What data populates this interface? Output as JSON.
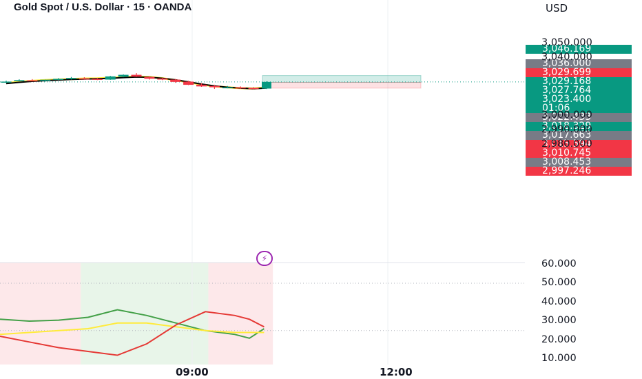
{
  "header": {
    "title": "Gold Spot / U.S. Dollar · 15 · OANDA",
    "currency": "USD"
  },
  "icons": {
    "flash": "lightning-icon"
  },
  "colors": {
    "up": "#089981",
    "down": "#f23645",
    "gray_tag": "#787b86",
    "ma_fast": "#ffeb3b",
    "ma_slow": "#000000",
    "rsi_green": "#43a047",
    "rsi_yellow": "#ffeb3b",
    "rsi_red": "#e53935"
  },
  "chart_data": [
    {
      "type": "candlestick",
      "title": "Gold Spot / U.S. Dollar · 15 · OANDA",
      "ylabel": "USD",
      "ylim": [
        2975,
        3062
      ],
      "x_ticks": [
        "09:00",
        "12:00"
      ],
      "y_ticks": [
        3050,
        3040,
        3000,
        2990,
        2980
      ],
      "y_tick_labels": [
        "3,050.000",
        "3,040.000",
        "3,000.000",
        "2,990.000",
        "2,980.000"
      ],
      "last_price": 3023.4,
      "bar_countdown": "01:06",
      "candles": [
        {
          "o": 3023.3,
          "h": 3024.3,
          "l": 3022.6,
          "c": 3023.6
        },
        {
          "o": 3024.3,
          "h": 3025.2,
          "l": 3024.0,
          "c": 3024.6
        },
        {
          "o": 3024.5,
          "h": 3025.3,
          "l": 3023.7,
          "c": 3024.3
        },
        {
          "o": 3024.2,
          "h": 3025.0,
          "l": 3023.6,
          "c": 3024.9
        },
        {
          "o": 3025.0,
          "h": 3026.0,
          "l": 3024.6,
          "c": 3025.5
        },
        {
          "o": 3025.4,
          "h": 3026.8,
          "l": 3024.9,
          "c": 3026.1
        },
        {
          "o": 3025.8,
          "h": 3026.6,
          "l": 3025.0,
          "c": 3025.6
        },
        {
          "o": 3025.5,
          "h": 3026.0,
          "l": 3024.6,
          "c": 3025.0
        },
        {
          "o": 3025.0,
          "h": 3027.6,
          "l": 3024.8,
          "c": 3027.2
        },
        {
          "o": 3027.0,
          "h": 3028.6,
          "l": 3026.6,
          "c": 3028.3
        },
        {
          "o": 3028.3,
          "h": 3029.5,
          "l": 3026.8,
          "c": 3027.0
        },
        {
          "o": 3026.8,
          "h": 3027.3,
          "l": 3025.0,
          "c": 3025.6
        },
        {
          "o": 3025.8,
          "h": 3026.2,
          "l": 3024.6,
          "c": 3025.0
        },
        {
          "o": 3025.0,
          "h": 3025.4,
          "l": 3022.8,
          "c": 3023.4
        },
        {
          "o": 3023.6,
          "h": 3024.2,
          "l": 3021.2,
          "c": 3021.4
        },
        {
          "o": 3021.5,
          "h": 3022.5,
          "l": 3020.0,
          "c": 3020.3
        },
        {
          "o": 3020.6,
          "h": 3021.4,
          "l": 3018.6,
          "c": 3019.7
        },
        {
          "o": 3019.7,
          "h": 3020.6,
          "l": 3019.0,
          "c": 3019.7
        },
        {
          "o": 3019.6,
          "h": 3020.3,
          "l": 3018.6,
          "c": 3019.1
        },
        {
          "o": 3019.2,
          "h": 3019.8,
          "l": 3018.3,
          "c": 3018.7
        },
        {
          "o": 3018.8,
          "h": 3023.8,
          "l": 3018.5,
          "c": 3023.4
        }
      ],
      "ma_fast": [
        3022.6,
        3023.4,
        3024.1,
        3024.6,
        3025.0,
        3025.4,
        3025.7,
        3025.8,
        3026.2,
        3026.8,
        3027.1,
        3026.8,
        3025.9,
        3024.6,
        3023.2,
        3021.6,
        3020.4,
        3019.6,
        3019.1,
        3018.8,
        3019.6
      ],
      "ma_slow": [
        3022.3,
        3023.1,
        3023.8,
        3024.3,
        3024.7,
        3025.1,
        3025.4,
        3025.6,
        3025.9,
        3026.4,
        3026.8,
        3026.6,
        3025.9,
        3024.8,
        3023.4,
        3021.9,
        3020.6,
        3019.7,
        3019.1,
        3018.7,
        3019.2
      ],
      "position": {
        "entry": 3023.1,
        "target": 3027.8,
        "stop": 3019.1
      },
      "price_tags": [
        {
          "label": "3,046.169",
          "value": 3046.169,
          "color": "up"
        },
        {
          "label": "3,036.000",
          "value": 3036.0,
          "color": "gray_tag"
        },
        {
          "label": "3,029.699",
          "value": 3029.699,
          "color": "down"
        },
        {
          "label": "3,029.168",
          "value": 3029.168,
          "color": "up"
        },
        {
          "label": "3,027.764",
          "value": 3027.764,
          "color": "up"
        },
        {
          "label": "3,023.400",
          "value": 3023.4,
          "color": "up"
        },
        {
          "label": "3,022.433",
          "value": 3022.433,
          "color": "gray_tag"
        },
        {
          "label": "3,018.329",
          "value": 3018.329,
          "color": "up"
        },
        {
          "label": "3,017.663",
          "value": 3017.663,
          "color": "gray_tag"
        },
        {
          "label": "3,015.594",
          "value": 3015.594,
          "color": "down"
        },
        {
          "label": "3,010.745",
          "value": 3010.745,
          "color": "down"
        },
        {
          "label": "3,008.453",
          "value": 3008.453,
          "color": "gray_tag"
        },
        {
          "label": "2,997.246",
          "value": 2997.246,
          "color": "down"
        }
      ]
    },
    {
      "type": "line",
      "ylim": [
        5,
        62
      ],
      "y_ticks": [
        60,
        50,
        40,
        30,
        20,
        10
      ],
      "y_tick_labels": [
        "60.000",
        "50.000",
        "40.000",
        "30.000",
        "20.000",
        "10.000"
      ],
      "dotted_levels": [
        50,
        25
      ],
      "zones": [
        {
          "from": 0,
          "to": 5.5,
          "color": "#fde8ea"
        },
        {
          "from": 5.5,
          "to": 14.2,
          "color": "#e8f5e9"
        },
        {
          "from": 14.2,
          "to": 18.6,
          "color": "#fde8ea"
        }
      ],
      "x": [
        0,
        2,
        4,
        6,
        8,
        10,
        12,
        14,
        16,
        17,
        18
      ],
      "series": [
        {
          "color": "rsi_green",
          "values": [
            31,
            30,
            30.5,
            32,
            36,
            33,
            29,
            25,
            23,
            21,
            26
          ]
        },
        {
          "color": "rsi_yellow",
          "values": [
            23,
            24,
            25,
            26,
            29,
            29,
            27,
            25,
            24,
            24,
            24
          ]
        },
        {
          "color": "rsi_red",
          "values": [
            22,
            19,
            16,
            14,
            12,
            18,
            28,
            35,
            33,
            31,
            27
          ]
        }
      ]
    }
  ]
}
